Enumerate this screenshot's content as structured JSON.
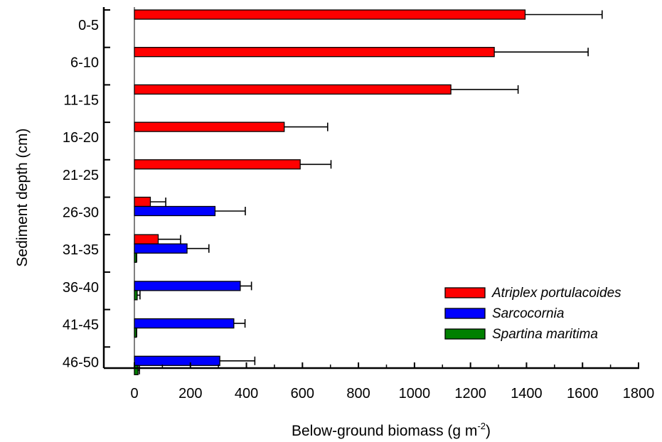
{
  "chart_data": {
    "type": "bar",
    "orientation": "horizontal",
    "categories": [
      "0-5",
      "6-10",
      "11-15",
      "16-20",
      "21-25",
      "26-30",
      "31-35",
      "36-40",
      "41-45",
      "46-50"
    ],
    "series": [
      {
        "name": "Atriplex portulacoides",
        "color": "#ff0000",
        "values": [
          1395,
          1285,
          1130,
          535,
          592,
          57,
          85,
          null,
          null,
          null
        ],
        "errors": [
          275,
          335,
          240,
          155,
          110,
          55,
          80,
          null,
          null,
          null
        ]
      },
      {
        "name": "Sarcocornia",
        "color": "#0000ff",
        "values": [
          null,
          null,
          null,
          null,
          null,
          288,
          188,
          378,
          355,
          305
        ],
        "errors": [
          null,
          null,
          null,
          null,
          null,
          108,
          78,
          40,
          40,
          125
        ]
      },
      {
        "name": "Spartina maritima",
        "color": "#008000",
        "values": [
          null,
          null,
          null,
          null,
          null,
          null,
          5,
          10,
          5,
          13
        ],
        "errors": [
          null,
          null,
          null,
          null,
          null,
          null,
          3,
          10,
          3,
          5
        ]
      }
    ],
    "xlabel_main": "Below-ground biomass (g m",
    "xlabel_sup": "-2",
    "xlabel_end": ")",
    "ylabel": "Sediment depth (cm)",
    "xlim": [
      0,
      1800
    ],
    "xticks": [
      0,
      200,
      400,
      600,
      800,
      1000,
      1200,
      1400,
      1600,
      1800
    ],
    "grid": false,
    "legend_position": "bottom-right"
  }
}
